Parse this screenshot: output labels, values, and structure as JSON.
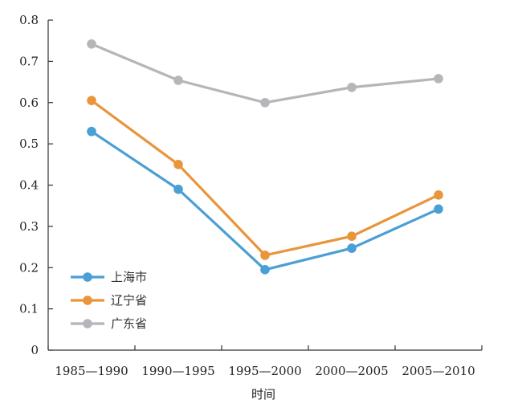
{
  "chart_data": {
    "type": "line",
    "title": "",
    "xlabel": "时间",
    "ylabel": "",
    "categories": [
      "1985—1990",
      "1990—1995",
      "1995—2000",
      "2000—2005",
      "2005—2010"
    ],
    "ylim": [
      0,
      0.8
    ],
    "yticks": [
      "0",
      "0.1",
      "0.2",
      "0.3",
      "0.4",
      "0.5",
      "0.6",
      "0.7",
      "0.8"
    ],
    "grid": false,
    "legend_position": "bottom-left",
    "series": [
      {
        "name": "上海市",
        "color": "#4a9fd4",
        "values": [
          0.53,
          0.39,
          0.195,
          0.247,
          0.342
        ]
      },
      {
        "name": "辽宁省",
        "color": "#e8953b",
        "values": [
          0.605,
          0.45,
          0.23,
          0.276,
          0.376
        ]
      },
      {
        "name": "广东省",
        "color": "#b5b5ba",
        "values": [
          0.742,
          0.654,
          0.6,
          0.637,
          0.658
        ]
      }
    ]
  }
}
